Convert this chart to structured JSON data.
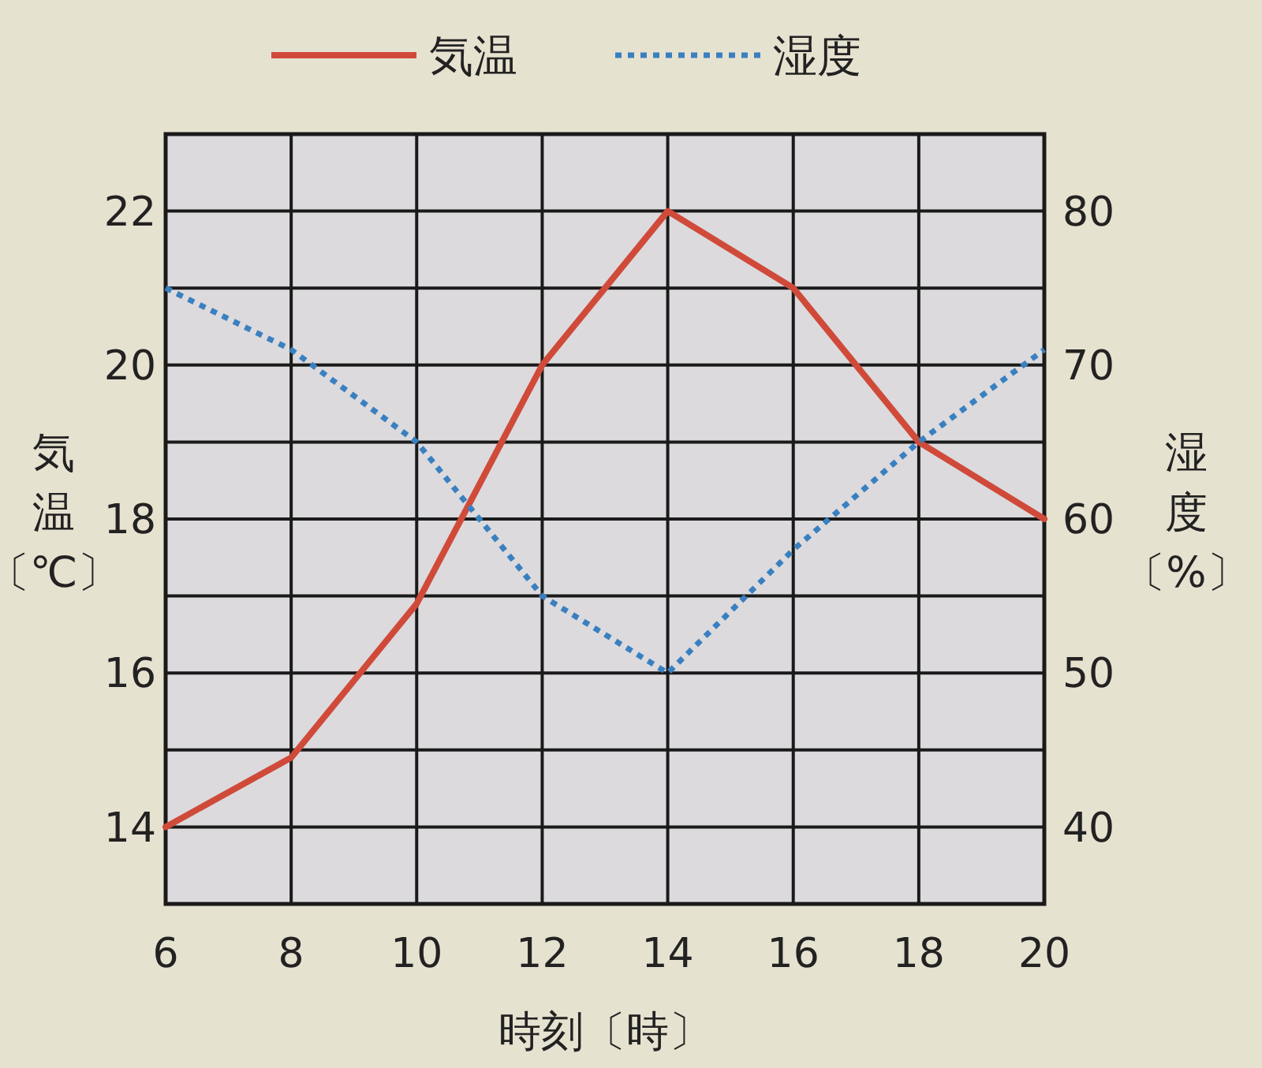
{
  "chart_data": {
    "type": "line",
    "xlabel": "時刻〔時〕",
    "ylabel": "気温〔℃〕",
    "y2label": "湿度〔%〕",
    "x": [
      6,
      8,
      10,
      12,
      14,
      16,
      18,
      20
    ],
    "series": [
      {
        "name": "気温",
        "color": "#d04a3a",
        "line_style": "solid",
        "values": [
          14,
          14.9,
          16.9,
          20,
          22,
          21,
          19,
          18
        ]
      },
      {
        "name": "湿度",
        "color": "#3a80c0",
        "line_style": "dotted",
        "axis": "y2",
        "values": [
          75,
          71,
          65,
          55,
          50,
          58,
          65,
          71
        ]
      }
    ],
    "xlim": [
      6,
      20
    ],
    "xticks": [
      6,
      8,
      10,
      12,
      14,
      16,
      18,
      20
    ],
    "ylim": [
      13,
      23
    ],
    "yticks": [
      {
        "value": 13,
        "label": null
      },
      14,
      {
        "value": 15,
        "label": null
      },
      16,
      {
        "value": 17,
        "label": null
      },
      18,
      {
        "value": 19,
        "label": null
      },
      20,
      {
        "value": 21,
        "label": null
      },
      22,
      {
        "value": 23,
        "label": null
      }
    ],
    "y2lim": [
      35,
      85
    ],
    "y2ticks": [
      40,
      50,
      60,
      70,
      80
    ],
    "grid": true,
    "legend": "top"
  }
}
